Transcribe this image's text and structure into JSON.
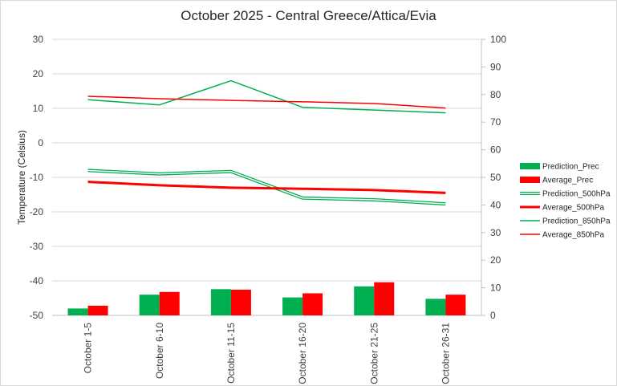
{
  "chart_data": {
    "type": "bar+line",
    "title": "October 2025 - Central Greece/Attica/Evia",
    "ylabel": "Temperature (Celsius)",
    "y2label": "",
    "xlabel": "",
    "ylim": [
      -50,
      30
    ],
    "y2lim": [
      0,
      100
    ],
    "yticks": [
      30,
      20,
      10,
      0,
      -10,
      -20,
      -30,
      -40,
      -50
    ],
    "y2ticks": [
      100,
      90,
      80,
      70,
      60,
      50,
      40,
      30,
      20,
      10,
      0
    ],
    "categories": [
      "October 1-5",
      "October 6-10",
      "October 11-15",
      "October 16-20",
      "October 21-25",
      "October 26-31"
    ],
    "bar_series": [
      {
        "name": "Prediction_Prec",
        "color": "#00b050",
        "axis": "right",
        "values": [
          2.5,
          7.5,
          9.5,
          6.5,
          10.5,
          6
        ]
      },
      {
        "name": "Average_Prec",
        "color": "#ff0000",
        "axis": "right",
        "values": [
          3.5,
          8.5,
          9.3,
          8,
          12,
          7.5
        ]
      }
    ],
    "line_series": [
      {
        "name": "Prediction_500hPa",
        "color": "#00b050",
        "style": "double",
        "axis": "left",
        "values": [
          -8,
          -9,
          -8.3,
          -16,
          -16.5,
          -17.7
        ]
      },
      {
        "name": "Average_500hPa",
        "color": "#ff0000",
        "style": "thick",
        "axis": "left",
        "values": [
          -11.3,
          -12.3,
          -13,
          -13.3,
          -13.7,
          -14.5
        ]
      },
      {
        "name": "Prediction_850hPa",
        "color": "#00b050",
        "style": "thin",
        "axis": "left",
        "values": [
          12.5,
          11,
          18,
          10.3,
          9.5,
          8.7
        ]
      },
      {
        "name": "Average_850hPa",
        "color": "#ff0000",
        "style": "thin",
        "axis": "left",
        "values": [
          13.5,
          12.8,
          12.3,
          11.9,
          11.4,
          10.1
        ]
      }
    ],
    "legend": {
      "position": "right"
    },
    "grid": true
  }
}
